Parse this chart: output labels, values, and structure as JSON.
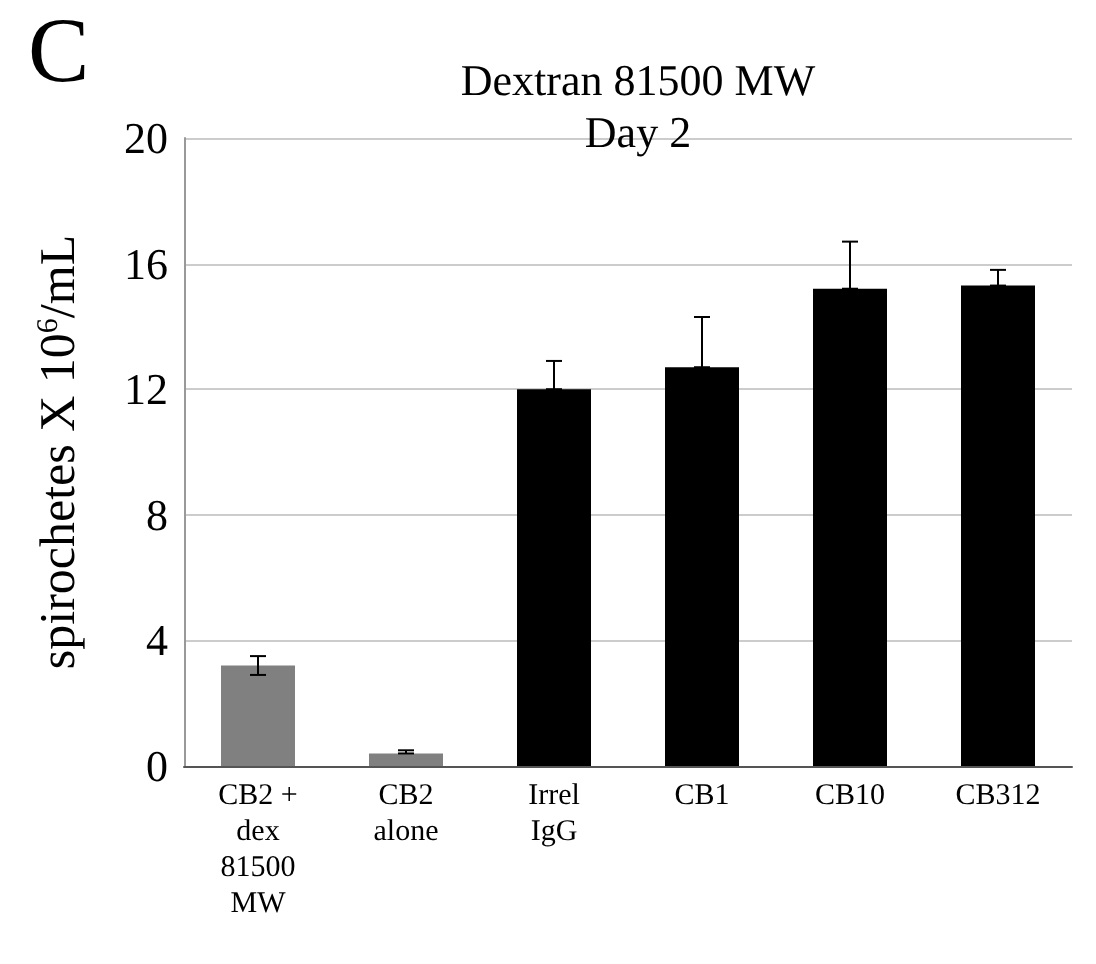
{
  "chart_data": {
    "type": "bar",
    "title": "Dextran 81500 MW",
    "subtitle": "Day 2",
    "ylabel": "spirochetes X 10$^{6}$/mL",
    "annotations": [
      "C"
    ],
    "categories": [
      "CB2 +\ndex\n81500\nMW",
      "CB2\nalone",
      "Irrel\nIgG",
      "CB1",
      "CB10",
      "CB312"
    ],
    "values": [
      3.2,
      0.4,
      12.0,
      12.7,
      15.2,
      15.3
    ],
    "colors": [
      "#808080",
      "#808080",
      "#000000",
      "#000000",
      "#000000",
      "#000000"
    ],
    "errors": [
      [
        2.9,
        3.5
      ],
      [
        0.4,
        0.5
      ],
      [
        12.0,
        12.9
      ],
      [
        12.7,
        14.3
      ],
      [
        15.2,
        16.7
      ],
      [
        15.3,
        15.8
      ]
    ],
    "ylim": [
      0,
      20
    ],
    "yticks": [
      0,
      4,
      8,
      12,
      16,
      20
    ],
    "grid": "y"
  }
}
